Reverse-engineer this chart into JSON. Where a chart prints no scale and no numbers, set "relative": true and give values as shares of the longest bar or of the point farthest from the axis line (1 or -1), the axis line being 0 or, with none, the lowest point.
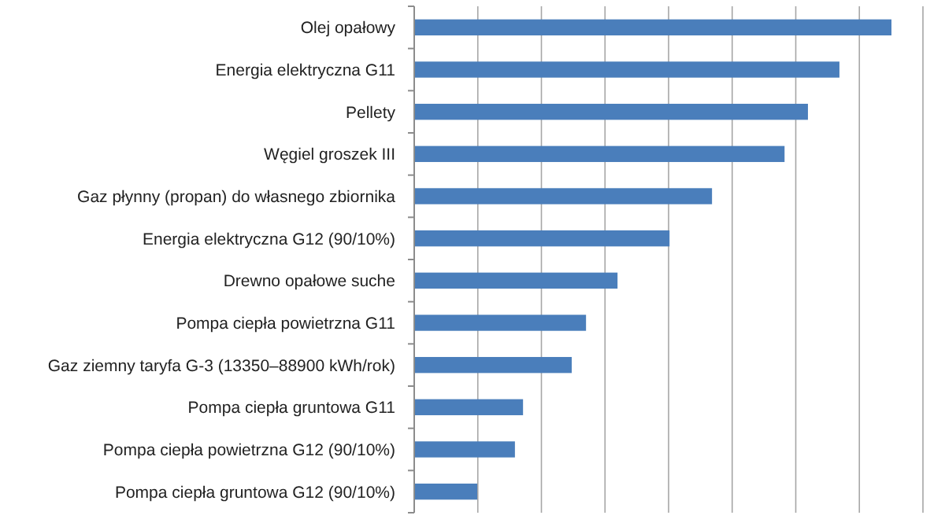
{
  "chart_data": {
    "type": "bar",
    "orientation": "horizontal",
    "relative": true,
    "grid": "x",
    "color": "#4a7ebb",
    "categories": [
      "Olej opałowy",
      "Energia elektryczna G11",
      "Pellety",
      "Węgiel groszek III",
      "Gaz płynny (propan) do własnego zbiornika",
      "Energia elektryczna G12 (90/10%)",
      "Drewno opałowe suche",
      "Pompa ciepła powietrzna G11",
      "Gaz ziemny taryfa G-3 (13350–88900 kWh/rok)",
      "Pompa ciepła gruntowa G11",
      "Pompa ciepła powietrzna G12 (90/10%)",
      "Pompa ciepła gruntowa G12 (90/10%)"
    ],
    "values": [
      1,
      0.891,
      0.825,
      0.776,
      0.624,
      0.535,
      0.426,
      0.36,
      0.33,
      0.228,
      0.211,
      0.132
    ]
  }
}
